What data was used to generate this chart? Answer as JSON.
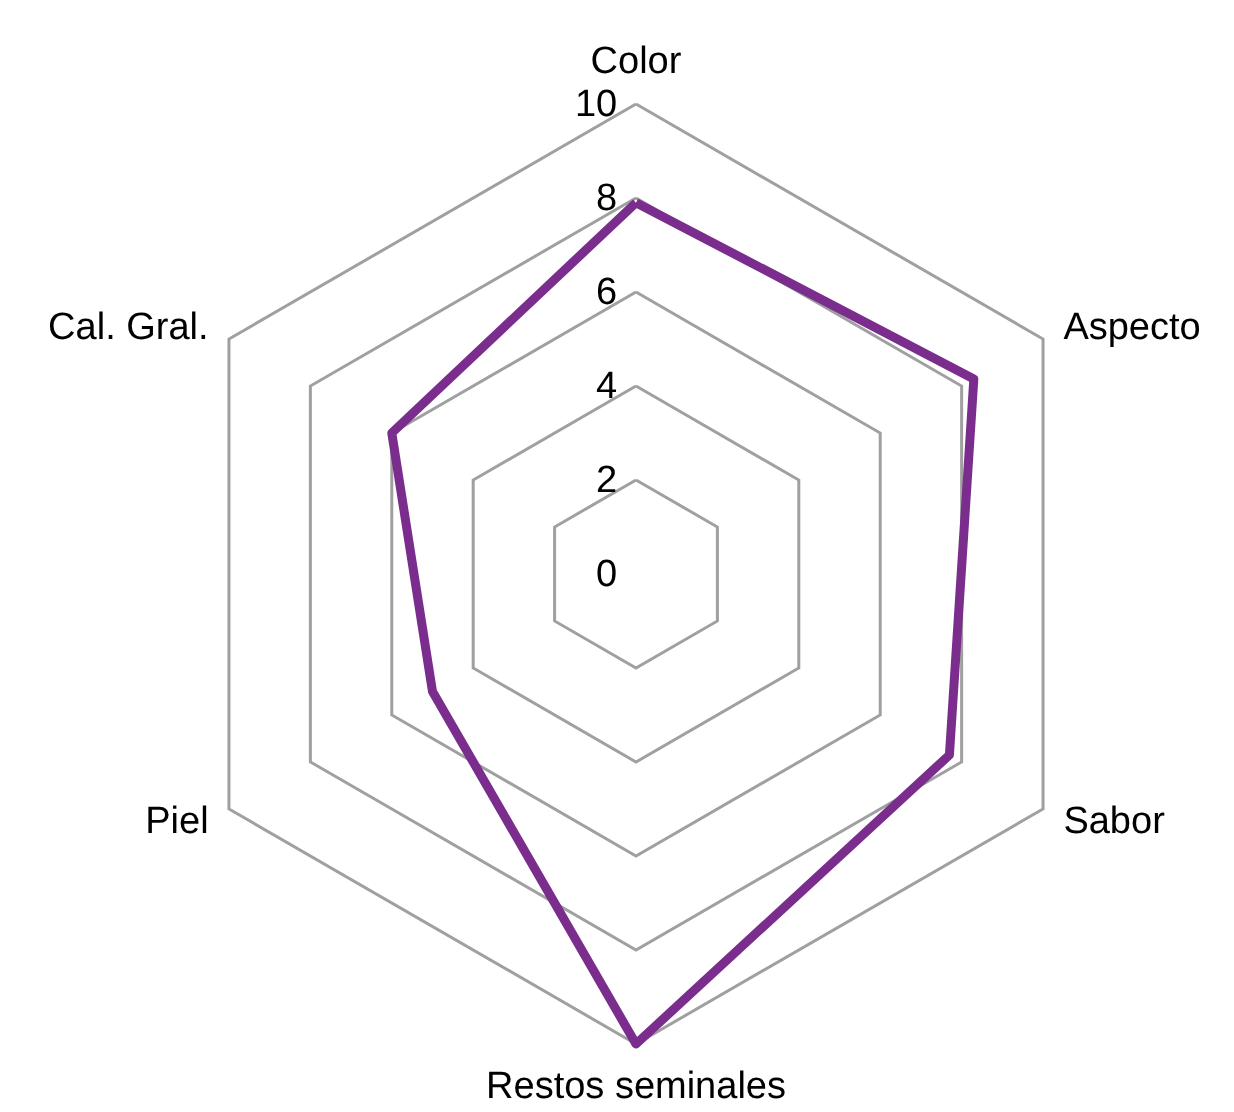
{
  "chart_data": {
    "type": "radar",
    "categories": [
      "Color",
      "Aspecto",
      "Sabor",
      "Restos seminales",
      "Piel",
      "Cal. Gral."
    ],
    "series": [
      {
        "color": "#7b2d8e",
        "values": [
          7.9,
          8.3,
          7.7,
          10,
          5,
          6
        ]
      }
    ],
    "ylim": [
      0,
      10
    ],
    "yticks": [
      0,
      2,
      4,
      6,
      8,
      10
    ],
    "grid": true
  }
}
